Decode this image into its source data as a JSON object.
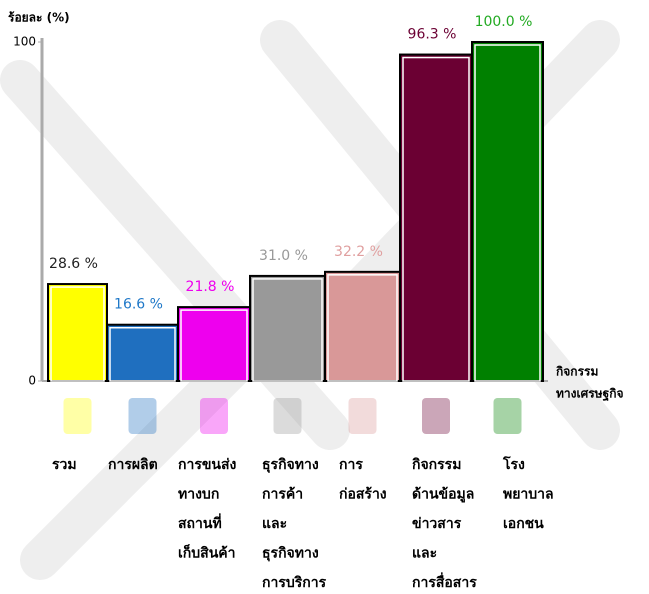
{
  "chart_data": {
    "type": "bar",
    "y_label": "ร้อยละ (%)",
    "x_label": [
      "กิจกรรม",
      "ทางเศรษฐกิจ"
    ],
    "categories": [
      [
        "รวม"
      ],
      [
        "การผลิต"
      ],
      [
        "การขนส่ง",
        "ทางบก",
        "สถานที่",
        "เก็บสินค้า"
      ],
      [
        "ธุรกิจทาง",
        "การค้า",
        "และ",
        "ธุรกิจทาง",
        "การบริการ"
      ],
      [
        "การ",
        "ก่อสร้าง"
      ],
      [
        "กิจกรรม",
        "ด้านข้อมูล",
        "ข่าวสาร",
        "และ",
        "การสื่อสาร"
      ],
      [
        "โรง",
        "พยาบาล",
        "เอกชน"
      ]
    ],
    "values": [
      28.6,
      16.6,
      21.8,
      31.0,
      32.2,
      96.3,
      100.0
    ],
    "value_labels": [
      "28.6 %",
      "16.6 %",
      "21.8 %",
      "31.0 %",
      "32.2 %",
      "96.3 %",
      "100.0 %"
    ],
    "colors": [
      "#ffff00",
      "#1f6fbf",
      "#ee00ee",
      "#999999",
      "#d99898",
      "#6b0033",
      "#008000"
    ],
    "label_colors": [
      "#222222",
      "#1f78c8",
      "#ee00ee",
      "#999999",
      "#e0a0a0",
      "#6b0033",
      "#22aa22"
    ],
    "ylim": [
      0,
      100
    ],
    "yticks": [
      0,
      100
    ]
  }
}
